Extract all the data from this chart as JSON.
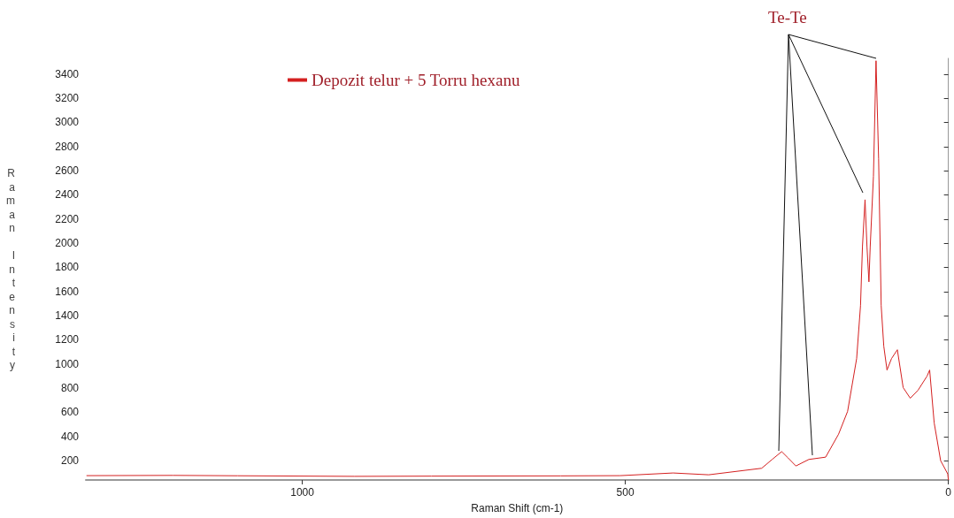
{
  "chart_data": {
    "type": "line",
    "xlabel": "Raman Shift (cm-1)",
    "ylabel": "Raman Intensity",
    "x": [
      1334,
      1200,
      1100,
      919,
      800,
      600,
      508,
      426,
      371,
      289,
      273,
      258,
      248,
      236,
      216,
      190,
      170,
      156,
      142,
      136,
      133,
      129,
      126,
      123,
      121,
      116,
      112,
      108,
      104,
      100,
      95,
      88,
      79,
      70,
      59,
      47,
      33,
      29,
      22,
      12,
      1,
      0
    ],
    "series": [
      {
        "name": "Depozit telur + 5 Torru hexanu",
        "color": "#d42020",
        "values": [
          76,
          78,
          75,
          70,
          72,
          74,
          76,
          98,
          83,
          137,
          209,
          275,
          222,
          156,
          210,
          229,
          419,
          608,
          1045,
          1483,
          1971,
          2360,
          1971,
          1680,
          1971,
          2554,
          3510,
          2700,
          1483,
          1148,
          950,
          1045,
          1118,
          805,
          717,
          783,
          900,
          950,
          513,
          200,
          90,
          40
        ]
      }
    ],
    "xlim": [
      1335,
      0
    ],
    "xticks": [
      1000,
      500,
      0
    ],
    "ylim": [
      40,
      3530
    ],
    "yticks": [
      200,
      400,
      600,
      800,
      1000,
      1200,
      1400,
      1600,
      1800,
      2000,
      2200,
      2400,
      2600,
      2800,
      3000,
      3200,
      3400
    ],
    "annotations": [
      "Te-Te"
    ],
    "legend": "top",
    "grid": false,
    "marker": "none",
    "line_style": "solid"
  }
}
